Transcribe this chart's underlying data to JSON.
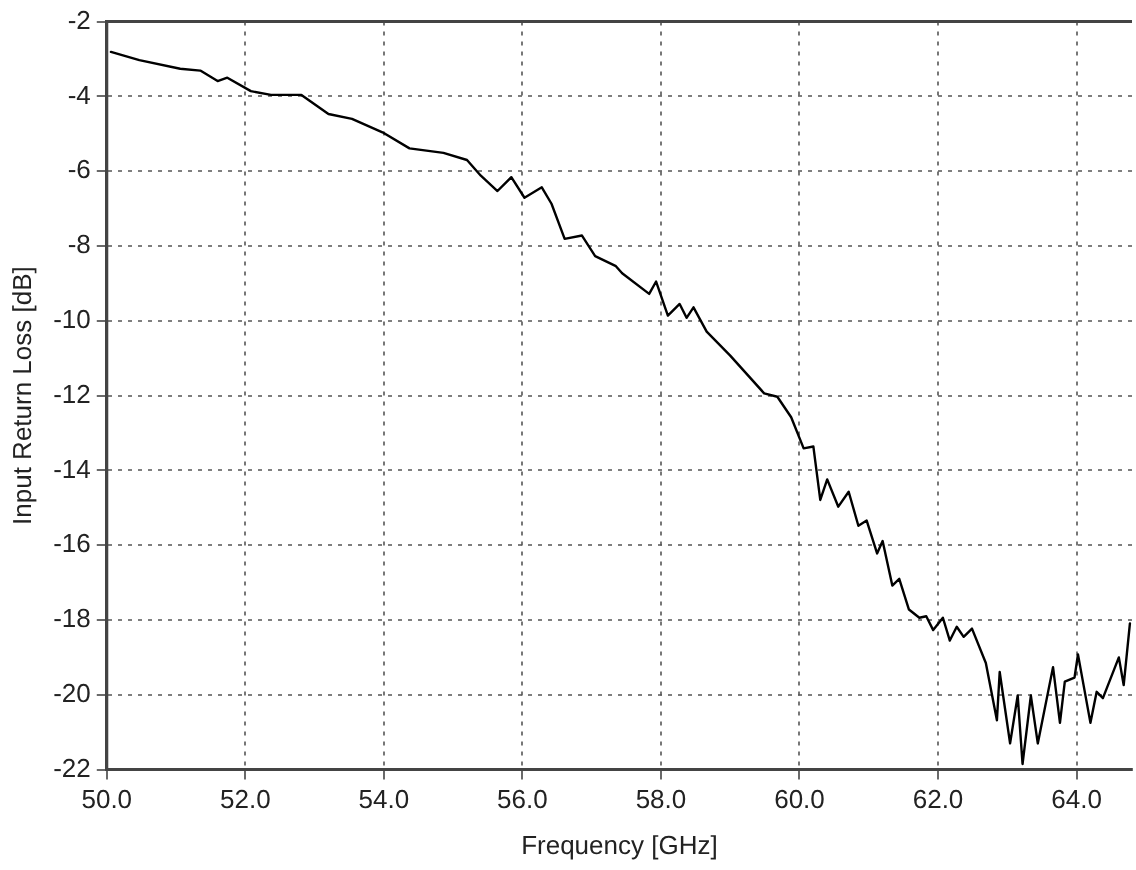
{
  "chart_data": {
    "type": "line",
    "xlabel": "Frequency [GHz]",
    "ylabel": "Input Return Loss [dB]",
    "xlim": [
      50,
      64.8
    ],
    "xticks": [
      {
        "value": 50,
        "label": "50.0"
      },
      {
        "value": 52,
        "label": "52.0"
      },
      {
        "value": 54,
        "label": "54.0"
      },
      {
        "value": 56,
        "label": "56.0"
      },
      {
        "value": 58,
        "label": "58.0"
      },
      {
        "value": 60,
        "label": "60.0"
      },
      {
        "value": 62,
        "label": "62.0"
      },
      {
        "value": 64,
        "label": "64.0"
      }
    ],
    "ylim": [
      -22,
      -2
    ],
    "yticks": [
      -22,
      -20,
      -18,
      -16,
      -14,
      -12,
      -10,
      -8,
      -6,
      -4,
      -2
    ],
    "grid": true,
    "marker": "none",
    "line_style": "solid",
    "series": [
      {
        "color": "#000000",
        "x": [
          50.06,
          50.47,
          51.06,
          51.35,
          51.6,
          51.74,
          52.08,
          52.37,
          52.81,
          53.2,
          53.54,
          53.98,
          54.37,
          54.86,
          55.2,
          55.4,
          55.64,
          55.84,
          56.03,
          56.28,
          56.42,
          56.61,
          56.86,
          57.05,
          57.35,
          57.44,
          57.83,
          57.93,
          58.1,
          58.27,
          58.37,
          58.47,
          58.66,
          59.0,
          59.49,
          59.68,
          59.88,
          60.06,
          60.2,
          60.3,
          60.4,
          60.56,
          60.71,
          60.85,
          60.97,
          61.12,
          61.2,
          61.34,
          61.44,
          61.58,
          61.73,
          61.83,
          61.93,
          62.07,
          62.17,
          62.27,
          62.37,
          62.49,
          62.69,
          62.85,
          62.89,
          63.04,
          63.15,
          63.22,
          63.34,
          63.44,
          63.66,
          63.76,
          63.83,
          63.97,
          64.02,
          64.2,
          64.29,
          64.38,
          64.61,
          64.68,
          64.77
        ],
        "values": [
          -2.81,
          -3.03,
          -3.26,
          -3.31,
          -3.59,
          -3.5,
          -3.86,
          -3.96,
          -3.96,
          -4.47,
          -4.6,
          -4.96,
          -5.39,
          -5.51,
          -5.7,
          -6.12,
          -6.53,
          -6.16,
          -6.71,
          -6.43,
          -6.87,
          -7.81,
          -7.72,
          -8.27,
          -8.54,
          -8.73,
          -9.28,
          -8.95,
          -9.86,
          -9.55,
          -9.92,
          -9.64,
          -10.29,
          -10.93,
          -11.94,
          -12.03,
          -12.58,
          -13.41,
          -13.36,
          -14.79,
          -14.24,
          -14.97,
          -14.57,
          -15.48,
          -15.34,
          -16.22,
          -15.89,
          -17.08,
          -16.9,
          -17.72,
          -17.94,
          -17.9,
          -18.27,
          -17.94,
          -18.55,
          -18.18,
          -18.45,
          -18.23,
          -19.15,
          -20.68,
          -19.39,
          -21.3,
          -20.02,
          -21.85,
          -20.02,
          -21.3,
          -19.26,
          -20.75,
          -19.65,
          -19.54,
          -18.92,
          -20.75,
          -19.92,
          -20.09,
          -19.0,
          -19.74,
          -18.09
        ]
      }
    ]
  }
}
